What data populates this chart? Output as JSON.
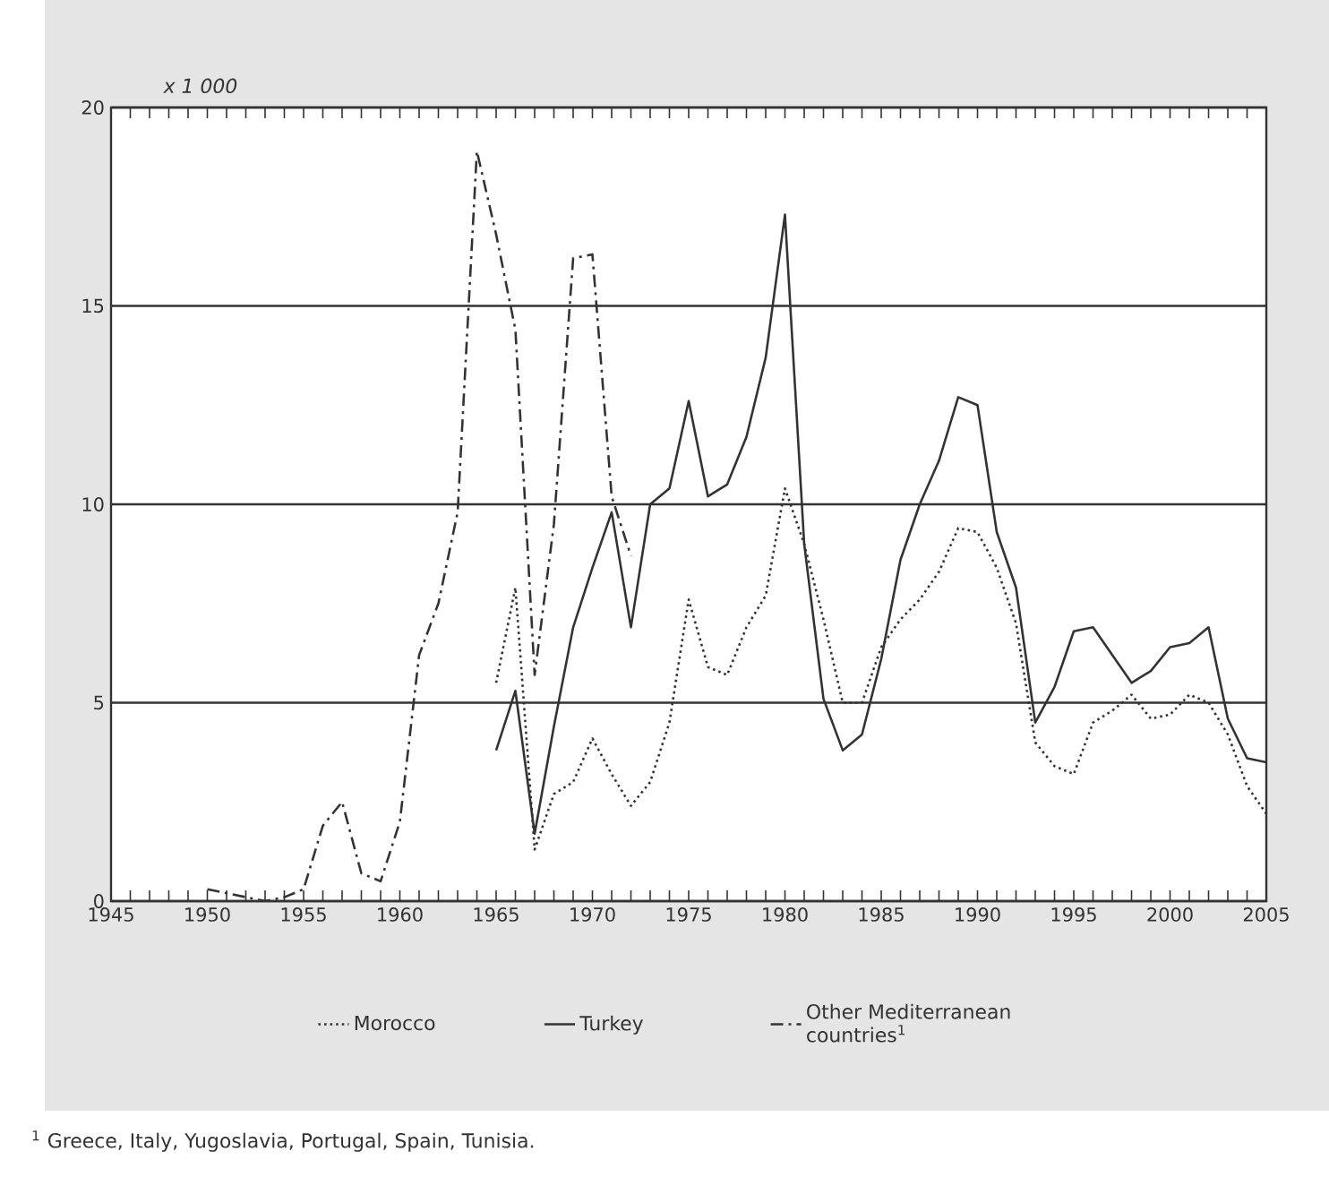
{
  "chart_data": {
    "type": "line",
    "ylabel": "x 1 000",
    "xlim": [
      1945,
      2005
    ],
    "xticks": [
      1945,
      1950,
      1955,
      1960,
      1965,
      1970,
      1975,
      1980,
      1985,
      1990,
      1995,
      2000,
      2005
    ],
    "ylim": [
      0,
      20
    ],
    "yticks": [
      0,
      5,
      10,
      15,
      20
    ],
    "grid": "y",
    "legend": "bottom",
    "series": [
      {
        "name": "Morocco",
        "color": "#333333",
        "line_style": "dotted",
        "x": [
          1965,
          1966,
          1967,
          1968,
          1969,
          1970,
          1971,
          1972,
          1973,
          1974,
          1975,
          1976,
          1977,
          1978,
          1979,
          1980,
          1981,
          1982,
          1983,
          1984,
          1985,
          1986,
          1987,
          1988,
          1989,
          1990,
          1991,
          1992,
          1993,
          1994,
          1995,
          1996,
          1997,
          1998,
          1999,
          2000,
          2001,
          2002,
          2003,
          2004,
          2005
        ],
        "values": [
          5.5,
          7.9,
          1.3,
          2.7,
          3.0,
          4.1,
          3.2,
          2.4,
          3.0,
          4.5,
          7.6,
          5.9,
          5.7,
          6.9,
          7.7,
          10.4,
          9.0,
          7.1,
          5.0,
          5.0,
          6.4,
          7.1,
          7.6,
          8.3,
          9.4,
          9.3,
          8.4,
          7.0,
          4.0,
          3.4,
          3.2,
          4.5,
          4.8,
          5.2,
          4.6,
          4.7,
          5.2,
          5.0,
          4.2,
          2.9,
          2.2
        ]
      },
      {
        "name": "Turkey",
        "color": "#333333",
        "line_style": "solid",
        "x": [
          1965,
          1966,
          1967,
          1968,
          1969,
          1970,
          1971,
          1972,
          1973,
          1974,
          1975,
          1976,
          1977,
          1978,
          1979,
          1980,
          1981,
          1982,
          1983,
          1984,
          1985,
          1986,
          1987,
          1988,
          1989,
          1990,
          1991,
          1992,
          1993,
          1994,
          1995,
          1996,
          1997,
          1998,
          1999,
          2000,
          2001,
          2002,
          2003,
          2004,
          2005
        ],
        "values": [
          3.8,
          5.3,
          1.7,
          4.4,
          6.9,
          8.4,
          9.8,
          6.9,
          10.0,
          10.4,
          12.6,
          10.2,
          10.5,
          11.7,
          13.7,
          17.3,
          9.0,
          5.1,
          3.8,
          4.2,
          6.1,
          8.6,
          10.0,
          11.1,
          12.7,
          12.5,
          9.3,
          7.9,
          4.5,
          5.4,
          6.8,
          6.9,
          6.2,
          5.5,
          5.8,
          6.4,
          6.5,
          6.9,
          4.6,
          3.6,
          3.5
        ]
      },
      {
        "name": "Other Mediterranean countries$^{1}$",
        "color": "#333333",
        "line_style": "dashdot",
        "x": [
          1950,
          1951,
          1952,
          1953,
          1954,
          1955,
          1956,
          1957,
          1958,
          1959,
          1960,
          1961,
          1962,
          1963,
          1964,
          1965,
          1966,
          1967,
          1968,
          1969,
          1970,
          1971,
          1972
        ],
        "values": [
          0.3,
          0.2,
          0.1,
          0,
          0.1,
          0.3,
          1.9,
          2.5,
          0.7,
          0.5,
          2.0,
          6.2,
          7.5,
          9.8,
          18.9,
          16.8,
          14.4,
          5.7,
          9.5,
          16.2,
          16.3,
          10.2,
          8.7
        ]
      }
    ],
    "annotations": [
      "$^{1}$ Greece, Italy, Yugoslavia, Portugal, Spain, Tunisia."
    ]
  }
}
